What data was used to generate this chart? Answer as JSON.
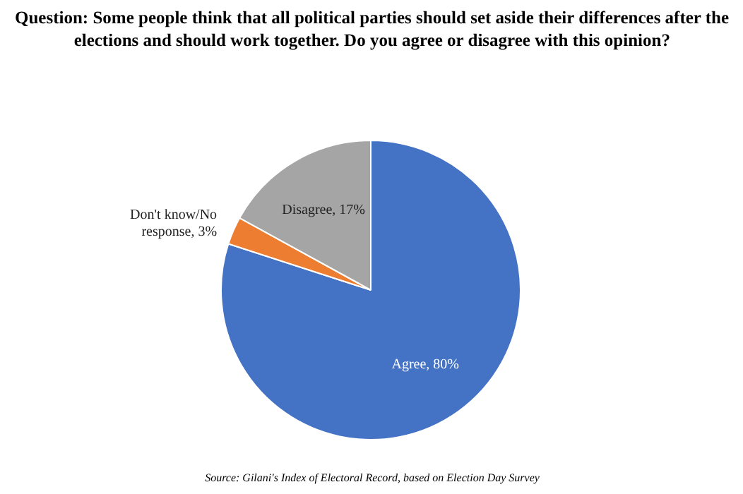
{
  "chart_data": {
    "type": "pie",
    "title": "Question: Some people think that all political parties should set aside their differences after the elections and should work together. Do you agree or disagree with this opinion?",
    "categories": [
      "Agree",
      "Don't know/No response",
      "Disagree"
    ],
    "values": [
      80,
      3,
      17
    ],
    "colors": [
      "#4472c4",
      "#ed7d31",
      "#a5a5a5"
    ],
    "value_labels": [
      "80%",
      "3%",
      "17%"
    ],
    "annotations": [
      "Source: Gilani's Index of Electoral Record, based on Election Day Survey"
    ]
  }
}
